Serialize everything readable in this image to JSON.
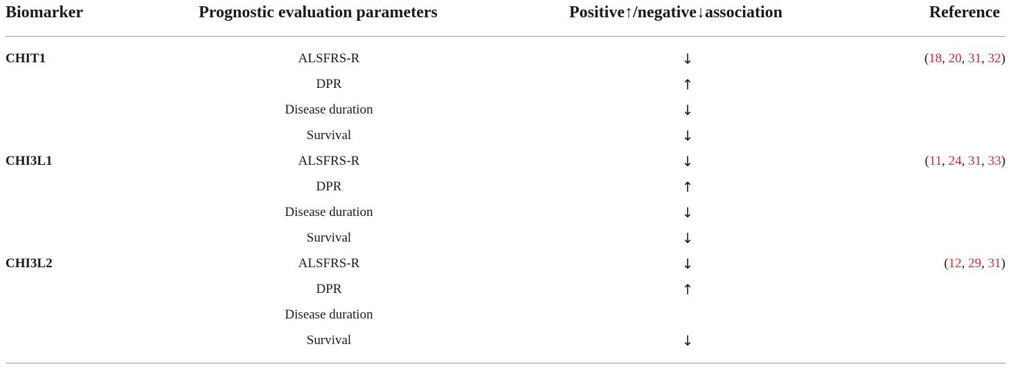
{
  "table": {
    "headers": {
      "biomarker": "Biomarker",
      "params": "Prognostic evaluation parameters",
      "association": "Positive↑/negative↓association",
      "reference": "Reference"
    },
    "rows": [
      {
        "biomarker": "CHIT1",
        "param": "ALSFRS-R",
        "assoc": "↓",
        "refs": [
          "18",
          "20",
          "31",
          "32"
        ]
      },
      {
        "biomarker": "",
        "param": "DPR",
        "assoc": "↑",
        "refs": []
      },
      {
        "biomarker": "",
        "param": "Disease duration",
        "assoc": "↓",
        "refs": []
      },
      {
        "biomarker": "",
        "param": "Survival",
        "assoc": "↓",
        "refs": []
      },
      {
        "biomarker": "CHI3L1",
        "param": "ALSFRS-R",
        "assoc": "↓",
        "refs": [
          "11",
          "24",
          "31",
          "33"
        ]
      },
      {
        "biomarker": "",
        "param": "DPR",
        "assoc": "↑",
        "refs": []
      },
      {
        "biomarker": "",
        "param": "Disease duration",
        "assoc": "↓",
        "refs": []
      },
      {
        "biomarker": "",
        "param": "Survival",
        "assoc": "↓",
        "refs": []
      },
      {
        "biomarker": "CHI3L2",
        "param": "ALSFRS-R",
        "assoc": "↓",
        "refs": [
          "12",
          "29",
          "31"
        ]
      },
      {
        "biomarker": "",
        "param": "DPR",
        "assoc": "↑",
        "refs": []
      },
      {
        "biomarker": "",
        "param": "Disease duration",
        "assoc": "",
        "refs": []
      },
      {
        "biomarker": "",
        "param": "Survival",
        "assoc": "↓",
        "refs": []
      }
    ]
  },
  "colors": {
    "reference_link": "#d42a2a",
    "rule": "#9a9a9a",
    "text": "#1a1a1a"
  }
}
